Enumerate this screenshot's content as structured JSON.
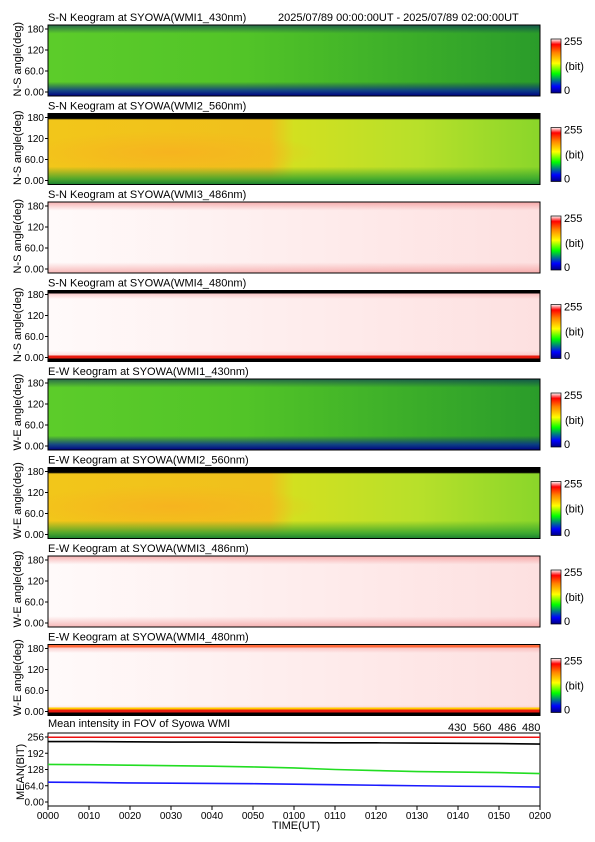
{
  "header": {
    "time_range": "2025/07/89 00:00:00UT - 2025/07/89 02:00:00UT"
  },
  "colorbar": {
    "max_label": "255",
    "unit_label": "(bit)",
    "min_label": "0"
  },
  "x_axis": {
    "label": "TIME(UT)",
    "ticks": [
      "0000",
      "0010",
      "0020",
      "0030",
      "0040",
      "0050",
      "0100",
      "0110",
      "0120",
      "0130",
      "0140",
      "0150",
      "0200"
    ]
  },
  "keogram_y_ticks": [
    "180",
    "120",
    "60.0",
    "0.00"
  ],
  "keograms": [
    {
      "title": "S-N Keogram at SYOWA(WMI1_430nm)",
      "ylabel": "N-S angle(deg)",
      "style": "green"
    },
    {
      "title": "S-N Keogram at SYOWA(WMI2_560nm)",
      "ylabel": "N-S angle(deg)",
      "style": "orange"
    },
    {
      "title": "S-N Keogram at SYOWA(WMI3_486nm)",
      "ylabel": "N-S angle(deg)",
      "style": "white"
    },
    {
      "title": "S-N Keogram at SYOWA(WMI4_480nm)",
      "ylabel": "N-S angle(deg)",
      "style": "white-edges"
    },
    {
      "title": "E-W Keogram at SYOWA(WMI1_430nm)",
      "ylabel": "W-E angle(deg)",
      "style": "green"
    },
    {
      "title": "E-W Keogram at SYOWA(WMI2_560nm)",
      "ylabel": "W-E angle(deg)",
      "style": "orange"
    },
    {
      "title": "E-W Keogram at SYOWA(WMI3_486nm)",
      "ylabel": "W-E angle(deg)",
      "style": "white"
    },
    {
      "title": "E-W Keogram at SYOWA(WMI4_480nm)",
      "ylabel": "W-E angle(deg)",
      "style": "white-edges"
    }
  ],
  "chart_data": {
    "type": "line",
    "title": "Mean intensity in FOV of Syowa WMI",
    "xlabel": "TIME(UT)",
    "ylabel": "MEAN(BIT)",
    "x": [
      "0000",
      "0010",
      "0020",
      "0030",
      "0040",
      "0050",
      "0100",
      "0110",
      "0120",
      "0130",
      "0140",
      "0150",
      "0200"
    ],
    "yticks": [
      "256",
      "192",
      "128",
      "64.0",
      "0.00"
    ],
    "ylim": [
      0,
      256
    ],
    "series": [
      {
        "name": "430",
        "color": "#1a1aff",
        "values": [
          78,
          77,
          75,
          74,
          73,
          72,
          70,
          68,
          66,
          64,
          62,
          61,
          59
        ]
      },
      {
        "name": "560",
        "color": "#22dd22",
        "values": [
          148,
          147,
          145,
          143,
          141,
          138,
          134,
          128,
          124,
          120,
          118,
          116,
          112
        ]
      },
      {
        "name": "486",
        "color": "#ee1111",
        "values": [
          255,
          255,
          255,
          255,
          255,
          255,
          255,
          255,
          255,
          255,
          255,
          255,
          255
        ]
      },
      {
        "name": "480",
        "color": "#000000",
        "values": [
          238,
          238,
          237,
          236,
          236,
          235,
          234,
          233,
          233,
          232,
          231,
          230,
          228
        ]
      }
    ]
  }
}
